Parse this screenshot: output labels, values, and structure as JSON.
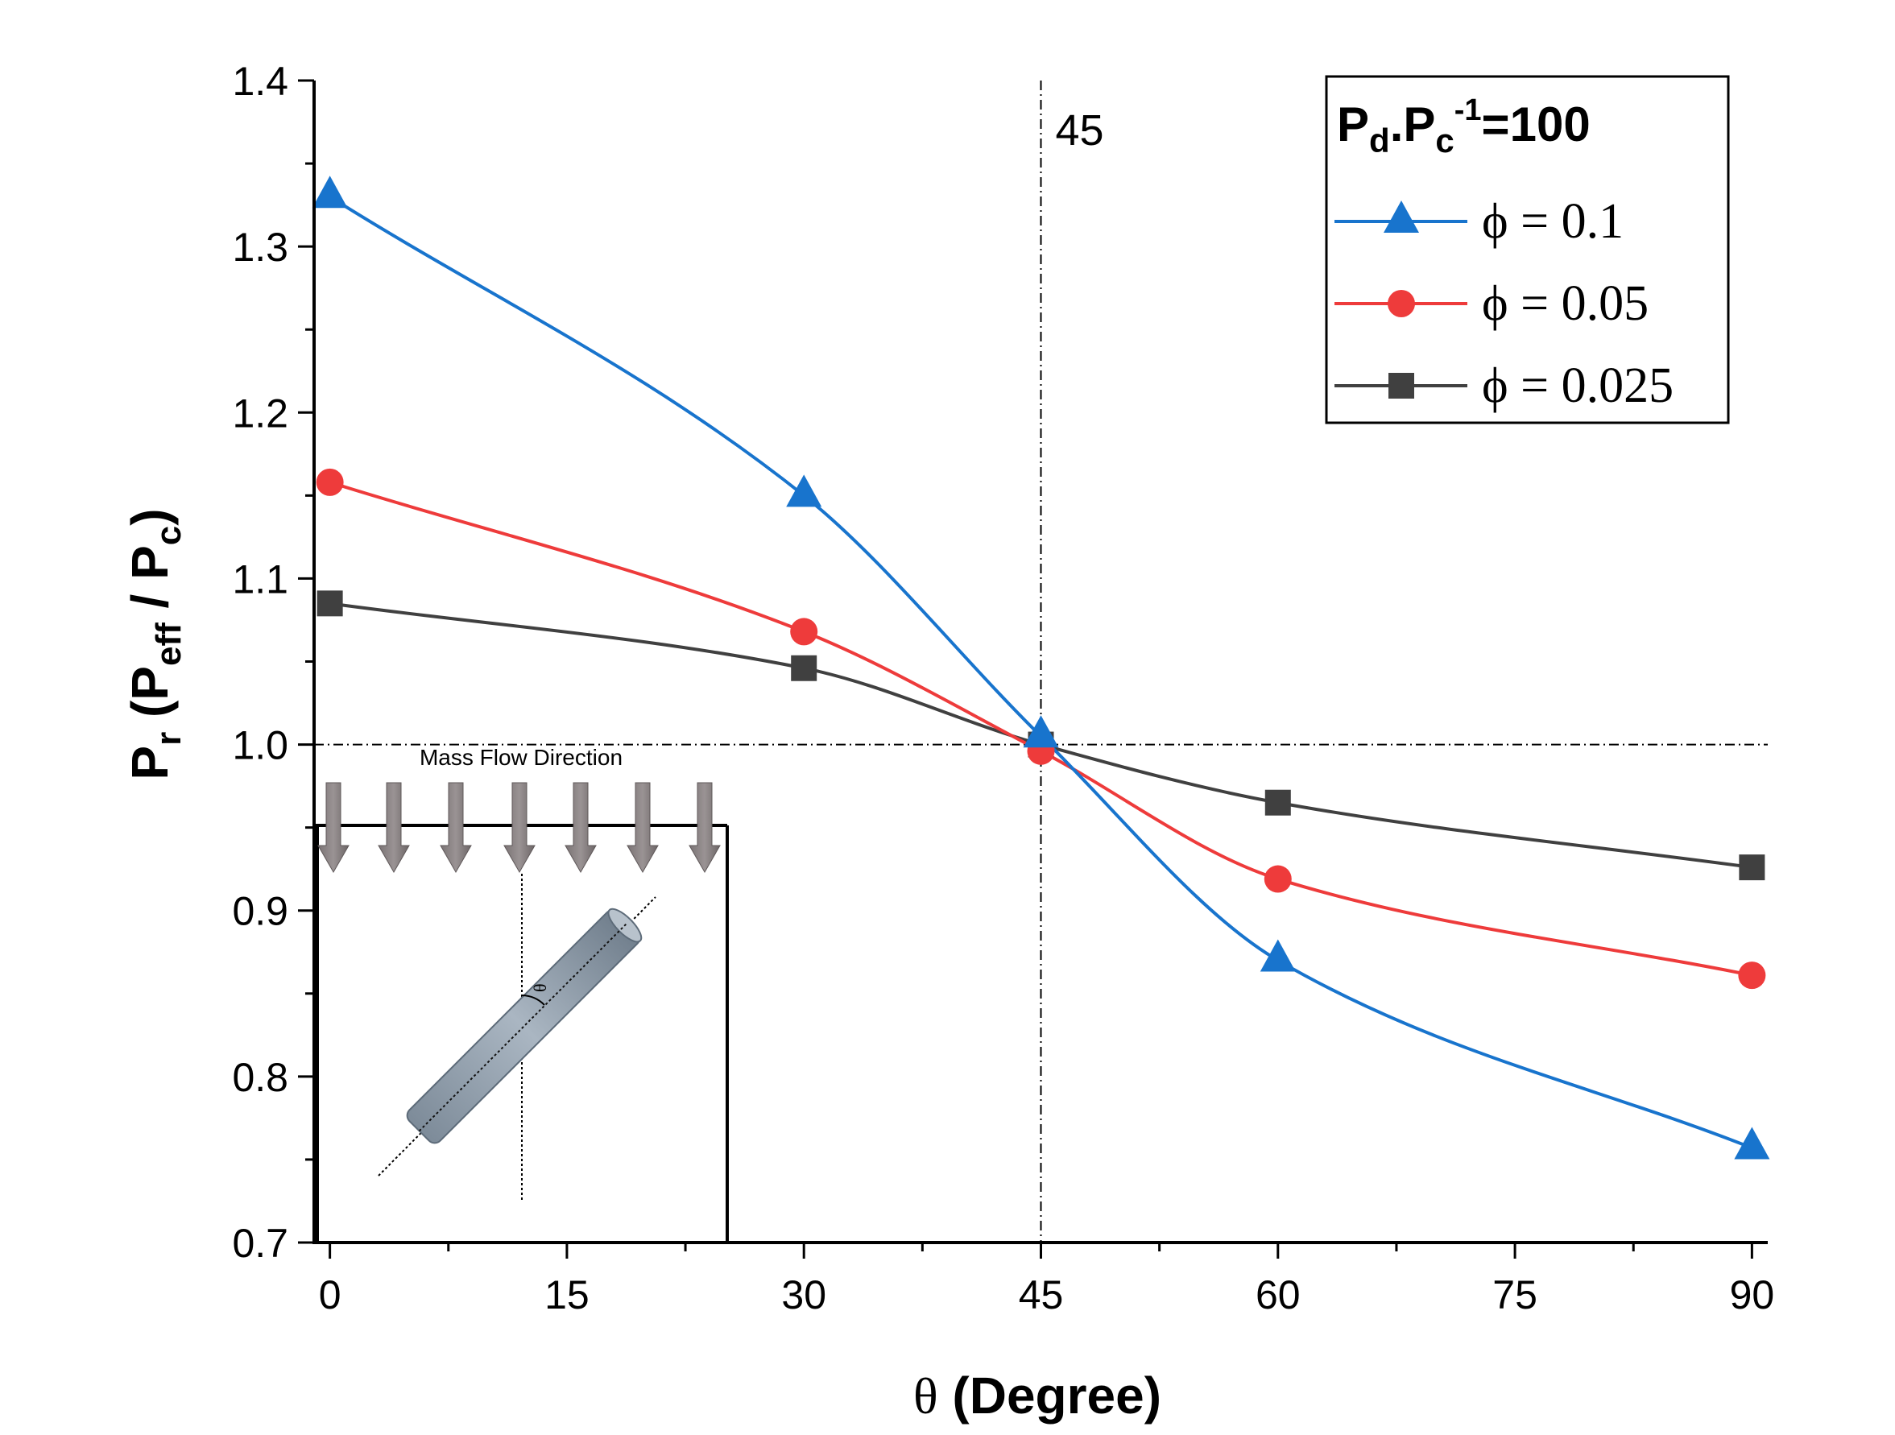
{
  "chart_data": {
    "type": "line",
    "x": [
      0,
      30,
      45,
      60,
      90
    ],
    "series": [
      {
        "name": "ϕ = 0.1",
        "marker": "triangle",
        "color": "#1874cd",
        "values": [
          1.33,
          1.15,
          1.005,
          0.87,
          0.757
        ]
      },
      {
        "name": "ϕ = 0.05",
        "marker": "circle",
        "color": "#ee3b3b",
        "values": [
          1.158,
          1.068,
          0.996,
          0.919,
          0.861
        ]
      },
      {
        "name": "ϕ = 0.025",
        "marker": "square",
        "color": "#404040",
        "values": [
          1.085,
          1.046,
          1.0,
          0.965,
          0.926
        ]
      }
    ],
    "xlim": [
      -1,
      91
    ],
    "ylim": [
      0.7,
      1.4
    ],
    "xticks": [
      0,
      15,
      30,
      45,
      60,
      75,
      90
    ],
    "yticks": [
      0.7,
      0.8,
      0.9,
      1.0,
      1.1,
      1.2,
      1.3,
      1.4
    ],
    "xtick_labels": [
      "0",
      "15",
      "30",
      "45",
      "60",
      "75",
      "90"
    ],
    "ytick_labels": [
      "0.7",
      "0.8",
      "0.9",
      "1.0",
      "1.1",
      "1.2",
      "1.3",
      "1.4"
    ],
    "xlabel": {
      "symbol": "θ",
      "text": " (Degree)"
    },
    "ylabel": {
      "p1": "P",
      "s1": "r",
      "p2": " (P",
      "s2": "eff",
      "p3": " / P",
      "s3": "c",
      "p4": ")"
    },
    "legend": {
      "title": {
        "p1": "P",
        "s1": "d",
        "p2": ".P",
        "s2": "c",
        "sup": "-1",
        "p3": "=100"
      },
      "position": "top-right"
    },
    "reference_lines": {
      "vertical_x": 45,
      "horizontal_y": 1.0
    },
    "annotations": [
      {
        "text": "45"
      }
    ],
    "inset": {
      "label": "Mass Flow Direction",
      "angle_symbol": "θ"
    }
  }
}
